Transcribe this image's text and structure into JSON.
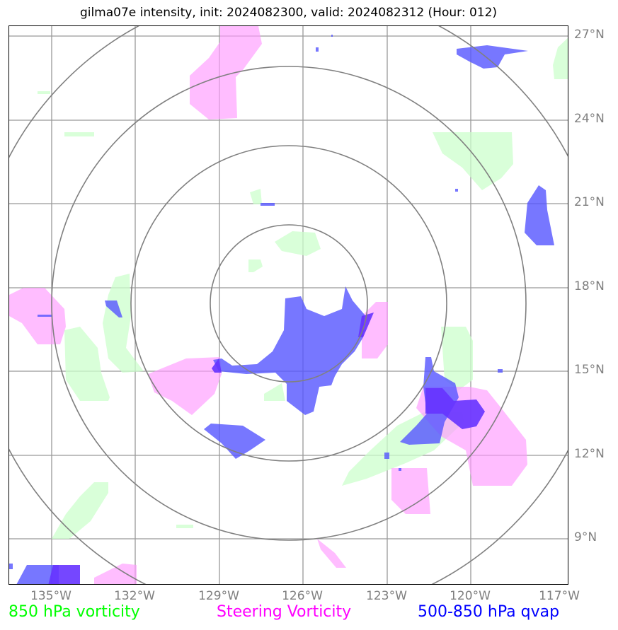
{
  "title": "gilma07e intensity, init: 2024082300, valid: 2024082312 (Hour: 012)",
  "lat_labels": [
    "27°N",
    "24°N",
    "21°N",
    "18°N",
    "15°N",
    "12°N",
    "9°N"
  ],
  "lon_labels": [
    "135°W",
    "132°W",
    "129°W",
    "126°W",
    "123°W",
    "120°W",
    "117°W"
  ],
  "legend": {
    "vort850": "850 hPa vorticity",
    "steering": "Steering Vorticity",
    "qvap": "500-850 hPa qvap"
  },
  "colors": {
    "vort850": "#ccffcc",
    "steering": "#ff99ff",
    "qvap": "#5555ff",
    "overlap": "#6633ff",
    "grid": "#999999",
    "rings": "#808080",
    "legend_850": "#00ff00",
    "legend_steering": "#ff00ff",
    "legend_qvap": "#0000ff"
  }
}
